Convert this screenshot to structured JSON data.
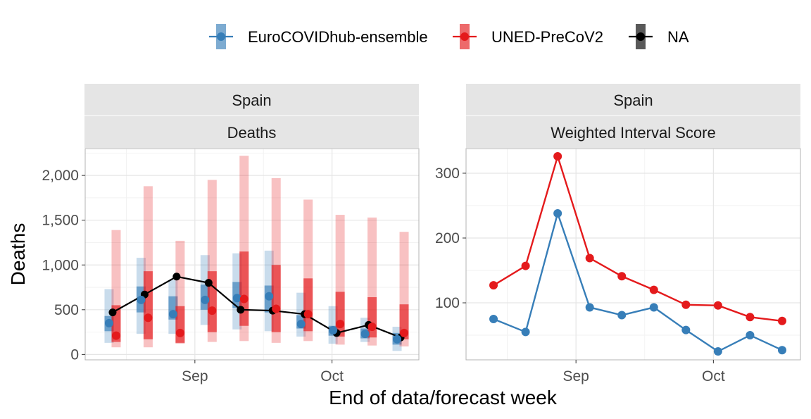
{
  "colors": {
    "ensemble": "#377EB8",
    "uned": "#E41A1C",
    "observed": "#000000",
    "strip_bg": "#E5E5E5",
    "panel_border": "#B3B3B3",
    "grid_major": "#E5E5E5",
    "grid_minor": "#F2F2F2"
  },
  "legend": {
    "items": [
      {
        "label": "EuroCOVIDhub-ensemble",
        "color": "#377EB8"
      },
      {
        "label": "UNED-PreCoV2",
        "color": "#E41A1C"
      },
      {
        "label": "NA",
        "color": "#000000"
      }
    ]
  },
  "axis": {
    "xlabel": "End of data/forecast week",
    "ylabel": "Deaths"
  },
  "chart_data": [
    {
      "type": "line",
      "panel": "left",
      "strips": [
        "Spain",
        "Deaths"
      ],
      "ylim": [
        -60,
        2300
      ],
      "yticks": [
        0,
        500,
        1000,
        1500,
        2000
      ],
      "ytick_labels": [
        "0",
        "500",
        "1,000",
        "1,500",
        "2,000"
      ],
      "x_categories": [
        "2021-08-14",
        "2021-08-21",
        "2021-08-28",
        "2021-09-04",
        "2021-09-11",
        "2021-09-18",
        "2021-09-25",
        "2021-10-02",
        "2021-10-09",
        "2021-10-16"
      ],
      "xlim": [
        "2021-08-08",
        "2021-10-20"
      ],
      "xticks": [
        "2021-09-01",
        "2021-10-01"
      ],
      "xtick_labels": [
        "Sep",
        "Oct"
      ],
      "grid": true,
      "series": [
        {
          "name": "EuroCOVIDhub-ensemble",
          "median": [
            350,
            610,
            450,
            610,
            630,
            650,
            340,
            270,
            230,
            170
          ],
          "interval_90": [
            [
              130,
              730
            ],
            [
              230,
              1080
            ],
            [
              230,
              830
            ],
            [
              330,
              1110
            ],
            [
              280,
              1130
            ],
            [
              260,
              1160
            ],
            [
              200,
              690
            ],
            [
              120,
              540
            ],
            [
              140,
              410
            ],
            [
              40,
              310
            ]
          ],
          "interval_50": [
            [
              260,
              430
            ],
            [
              470,
              760
            ],
            [
              390,
              650
            ],
            [
              500,
              780
            ],
            [
              520,
              810
            ],
            [
              470,
              770
            ],
            [
              290,
              440
            ],
            [
              210,
              320
            ],
            [
              180,
              290
            ],
            [
              110,
              240
            ]
          ]
        },
        {
          "name": "UNED-PreCoV2",
          "median": [
            210,
            410,
            240,
            490,
            620,
            510,
            450,
            340,
            310,
            240
          ],
          "interval_90": [
            [
              80,
              1390
            ],
            [
              80,
              1880
            ],
            [
              120,
              1270
            ],
            [
              140,
              1950
            ],
            [
              150,
              2220
            ],
            [
              130,
              1970
            ],
            [
              150,
              1730
            ],
            [
              110,
              1560
            ],
            [
              100,
              1530
            ],
            [
              90,
              1370
            ]
          ],
          "interval_50": [
            [
              140,
              550
            ],
            [
              170,
              930
            ],
            [
              130,
              540
            ],
            [
              250,
              930
            ],
            [
              320,
              1150
            ],
            [
              250,
              1000
            ],
            [
              260,
              850
            ],
            [
              200,
              700
            ],
            [
              190,
              640
            ],
            [
              170,
              560
            ]
          ]
        },
        {
          "name": "NA",
          "values": [
            470,
            670,
            870,
            800,
            500,
            490,
            450,
            240,
            330,
            190
          ]
        }
      ]
    },
    {
      "type": "line",
      "panel": "right",
      "strips": [
        "Spain",
        "Weighted Interval Score"
      ],
      "ylim": [
        12,
        338
      ],
      "yticks": [
        100,
        200,
        300
      ],
      "ytick_labels": [
        "100",
        "200",
        "300"
      ],
      "x_categories": [
        "2021-08-14",
        "2021-08-21",
        "2021-08-28",
        "2021-09-04",
        "2021-09-11",
        "2021-09-18",
        "2021-09-25",
        "2021-10-02",
        "2021-10-09",
        "2021-10-16"
      ],
      "xlim": [
        "2021-08-08",
        "2021-10-20"
      ],
      "xticks": [
        "2021-09-01",
        "2021-10-01"
      ],
      "xtick_labels": [
        "Sep",
        "Oct"
      ],
      "grid": true,
      "series": [
        {
          "name": "EuroCOVIDhub-ensemble",
          "values": [
            75,
            55,
            238,
            93,
            81,
            93,
            58,
            25,
            50,
            27
          ]
        },
        {
          "name": "UNED-PreCoV2",
          "values": [
            127,
            157,
            326,
            169,
            141,
            120,
            97,
            96,
            78,
            72
          ]
        }
      ]
    }
  ]
}
